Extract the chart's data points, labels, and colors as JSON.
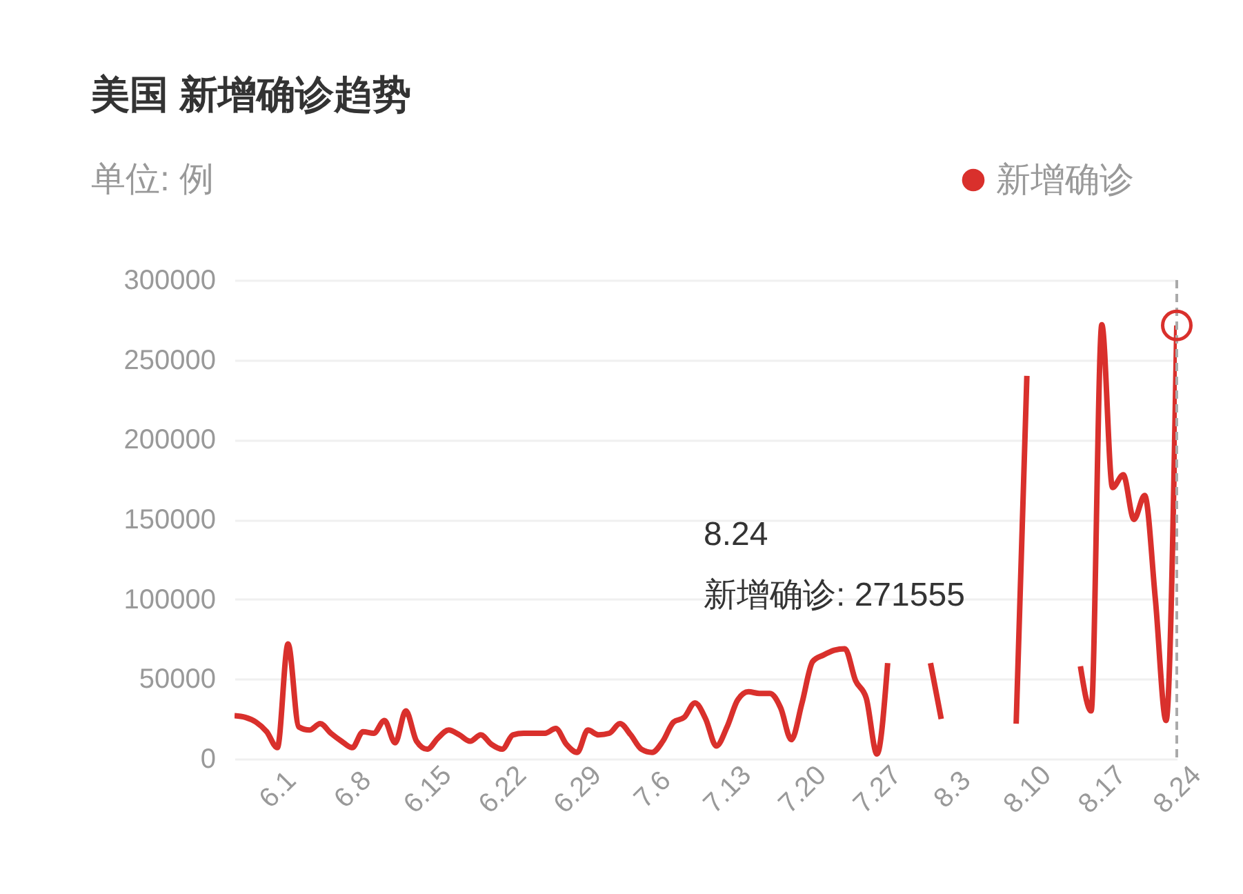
{
  "chart_data": {
    "type": "line",
    "title": "美国 新增确诊趋势",
    "subtitle": "单位: 例",
    "categories": [
      null,
      null,
      null,
      null,
      "6.1",
      null,
      null,
      null,
      null,
      null,
      null,
      "6.8",
      null,
      null,
      null,
      null,
      null,
      null,
      "6.15",
      null,
      null,
      null,
      null,
      null,
      null,
      "6.22",
      null,
      null,
      null,
      null,
      null,
      null,
      "6.29",
      null,
      null,
      null,
      null,
      null,
      null,
      "7.6",
      null,
      null,
      null,
      null,
      null,
      null,
      "7.13",
      null,
      null,
      null,
      null,
      null,
      null,
      "7.20",
      null,
      null,
      null,
      null,
      null,
      null,
      "7.27",
      null,
      null,
      null,
      null,
      null,
      null,
      "8.3",
      null,
      null,
      null,
      null,
      null,
      null,
      "8.10",
      null,
      null,
      null,
      null,
      null,
      null,
      "8.17",
      null,
      null,
      null,
      null,
      null,
      null,
      "8.24"
    ],
    "series": [
      {
        "name": "新增确诊",
        "color": "#d9302c",
        "values": [
          27000,
          26000,
          23000,
          17000,
          7000,
          72000,
          20000,
          18000,
          22000,
          16000,
          11000,
          7000,
          17000,
          16000,
          24000,
          10000,
          30000,
          11000,
          6000,
          13000,
          18000,
          15000,
          11000,
          15000,
          9000,
          6000,
          15000,
          16000,
          16000,
          16000,
          19000,
          9000,
          4000,
          18000,
          15000,
          16000,
          22000,
          15000,
          6000,
          4000,
          11000,
          23000,
          26000,
          35000,
          25000,
          8000,
          20000,
          37000,
          42000,
          41000,
          41000,
          32000,
          12000,
          35000,
          61000,
          65000,
          68000,
          69000,
          49000,
          38000,
          3000,
          60000,
          null,
          null,
          null,
          60000,
          25000,
          null,
          null,
          null,
          null,
          null,
          null,
          22000,
          240000,
          null,
          null,
          null,
          null,
          58000,
          30000,
          272000,
          170000,
          178000,
          150000,
          165000,
          100000,
          24000,
          271555
        ]
      }
    ],
    "ylim": [
      0,
      300000
    ],
    "yticks": [
      0,
      50000,
      100000,
      150000,
      200000,
      250000,
      300000
    ],
    "grid": "y",
    "legend": "top right",
    "marker": "none",
    "line_style": "solid",
    "ref_lines": [
      {
        "axis": "x",
        "value": "8.24",
        "color": "#aaaaaa",
        "line_style": "dashed"
      }
    ],
    "annotations": [
      "8.24\n新增确诊: 271555"
    ]
  }
}
